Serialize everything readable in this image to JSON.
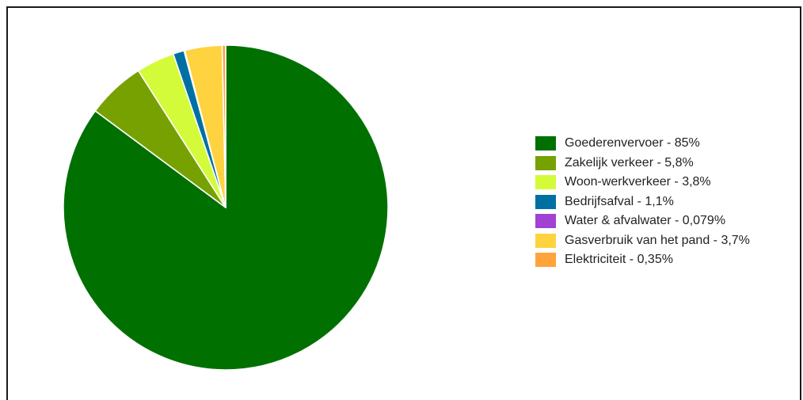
{
  "chart_data": {
    "type": "pie",
    "title": "",
    "legend_position": "right",
    "slices": [
      {
        "label": "Goederenvervoer - 85%",
        "name": "Goederenvervoer",
        "value": 85,
        "color": "#007000"
      },
      {
        "label": "Zakelijk verkeer - 5,8%",
        "name": "Zakelijk verkeer",
        "value": 5.8,
        "color": "#76a100"
      },
      {
        "label": "Woon-werkverkeer - 3,8%",
        "name": "Woon-werkverkeer",
        "value": 3.8,
        "color": "#d4fb3a"
      },
      {
        "label": "Bedrijfsafval - 1,1%",
        "name": "Bedrijfsafval",
        "value": 1.1,
        "color": "#0070a3"
      },
      {
        "label": "Water & afvalwater - 0,079%",
        "name": "Water & afvalwater",
        "value": 0.079,
        "color": "#a142d2"
      },
      {
        "label": "Gasverbruik van het pand - 3,7%",
        "name": "Gasverbruik van het pand",
        "value": 3.7,
        "color": "#ffd23f"
      },
      {
        "label": "Elektriciteit - 0,35%",
        "name": "Elektriciteit",
        "value": 0.35,
        "color": "#ffa43a"
      }
    ]
  }
}
